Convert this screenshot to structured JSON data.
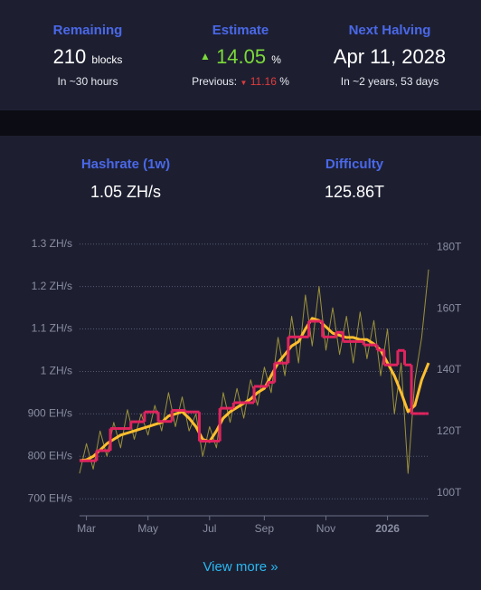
{
  "stats": {
    "remaining": {
      "title": "Remaining",
      "value": 210,
      "unit": "blocks",
      "sub": "In ~30 hours"
    },
    "estimate": {
      "title": "Estimate",
      "value": 14.05,
      "unit": "%",
      "previous_label": "Previous:",
      "previous_value": 11.16,
      "previous_unit": "%"
    },
    "halving": {
      "title": "Next Halving",
      "value": "Apr 11, 2028",
      "sub": "In ~2 years, 53 days"
    }
  },
  "mining": {
    "hashrate": {
      "title": "Hashrate (1w)",
      "value": "1.05 ZH/s"
    },
    "difficulty": {
      "title": "Difficulty",
      "value": "125.86T"
    }
  },
  "view_more": "View more »",
  "chart_data": {
    "type": "line",
    "categories": [
      null,
      "Mar",
      null,
      null,
      null,
      null,
      null,
      null,
      null,
      null,
      "May",
      null,
      null,
      null,
      null,
      null,
      null,
      null,
      null,
      "Jul",
      null,
      null,
      null,
      null,
      null,
      null,
      null,
      "Sep",
      null,
      null,
      null,
      null,
      null,
      null,
      null,
      null,
      "Nov",
      null,
      null,
      null,
      null,
      null,
      null,
      null,
      null,
      "2026",
      null,
      null,
      null,
      null,
      null,
      null
    ],
    "series": [
      {
        "color": "#b3a63c",
        "axis": "y",
        "style": "raw",
        "values": [
          760,
          830,
          770,
          860,
          800,
          880,
          820,
          910,
          840,
          900,
          850,
          920,
          860,
          950,
          870,
          940,
          860,
          900,
          800,
          870,
          820,
          950,
          880,
          960,
          890,
          980,
          920,
          1010,
          950,
          1080,
          990,
          1130,
          1020,
          1180,
          1060,
          1200,
          1050,
          1150,
          1040,
          1130,
          1020,
          1140,
          1030,
          1120,
          990,
          1100,
          900,
          1020,
          760,
          980,
          1080,
          1240
        ]
      },
      {
        "color": "#ffbf2e",
        "axis": "y",
        "style": "smooth",
        "values": [
          790,
          792,
          800,
          815,
          830,
          840,
          850,
          855,
          860,
          865,
          870,
          875,
          880,
          895,
          900,
          905,
          890,
          870,
          840,
          835,
          860,
          890,
          905,
          915,
          925,
          935,
          950,
          960,
          990,
          1020,
          1040,
          1060,
          1070,
          1100,
          1125,
          1120,
          1105,
          1090,
          1085,
          1080,
          1080,
          1075,
          1075,
          1065,
          1050,
          1020,
          990,
          950,
          905,
          920,
          980,
          1020
        ]
      },
      {
        "color": "#e0245e",
        "axis": "y2",
        "style": "step",
        "values": [
          110.5,
          110.5,
          110.5,
          113.8,
          113.8,
          121,
          121,
          121,
          123.2,
          123.2,
          126.4,
          126.4,
          123.3,
          123.3,
          126.9,
          126.9,
          126.4,
          126.4,
          116.9,
          116.9,
          116.9,
          127.6,
          127.6,
          129.4,
          129.4,
          129.4,
          134.7,
          134.7,
          136,
          142.3,
          142.3,
          150.8,
          150.8,
          150.8,
          155.9,
          155.9,
          150.8,
          150.8,
          152.3,
          149.3,
          149.3,
          149.3,
          148.2,
          148.2,
          146.5,
          141.7,
          141.7,
          146.4,
          141.7,
          125.86,
          125.86,
          125.86
        ]
      }
    ],
    "ylim": [
      660,
      1310
    ],
    "yticks": [
      {
        "value": 700,
        "label": "700 EH/s"
      },
      {
        "value": 800,
        "label": "800 EH/s"
      },
      {
        "value": 900,
        "label": "900 EH/s"
      },
      {
        "value": 1000,
        "label": "1 ZH/s"
      },
      {
        "value": 1100,
        "label": "1.1 ZH/s"
      },
      {
        "value": 1200,
        "label": "1.2 ZH/s"
      },
      {
        "value": 1300,
        "label": "1.3 ZH/s"
      }
    ],
    "y2lim": [
      92.6,
      182.4
    ],
    "y2ticks": [
      {
        "value": 100,
        "label": "100T"
      },
      {
        "value": 120,
        "label": "120T"
      },
      {
        "value": 140,
        "label": "140T"
      },
      {
        "value": 160,
        "label": "160T"
      },
      {
        "value": 180,
        "label": "180T"
      }
    ],
    "grid": true
  }
}
